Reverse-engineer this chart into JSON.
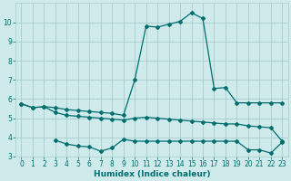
{
  "line1_x": [
    0,
    1,
    2,
    3,
    4,
    5,
    6,
    7,
    8,
    9,
    10,
    11,
    12,
    13,
    14,
    15,
    16,
    17,
    18,
    19,
    20,
    21,
    22,
    23
  ],
  "line1_y": [
    5.75,
    5.55,
    5.6,
    5.55,
    5.45,
    5.4,
    5.35,
    5.3,
    5.25,
    5.15,
    7.0,
    9.8,
    9.75,
    9.9,
    10.05,
    10.5,
    10.2,
    6.55,
    6.6,
    5.8,
    5.8,
    5.8,
    5.8,
    5.8
  ],
  "line2_x": [
    0,
    1,
    2,
    3,
    4,
    5,
    6,
    7,
    8,
    9,
    10,
    11,
    12,
    13,
    14,
    15,
    16,
    17,
    18,
    19,
    20,
    21,
    22,
    23
  ],
  "line2_y": [
    5.75,
    5.55,
    5.6,
    5.3,
    5.15,
    5.1,
    5.05,
    5.0,
    4.95,
    4.9,
    5.0,
    5.05,
    5.0,
    4.95,
    4.9,
    4.85,
    4.8,
    4.75,
    4.7,
    4.7,
    4.6,
    4.55,
    4.5,
    3.8
  ],
  "line3_x": [
    3,
    4,
    5,
    6,
    7,
    8,
    9,
    10,
    11,
    12,
    13,
    14,
    15,
    16,
    17,
    18,
    19,
    20,
    21,
    22,
    23
  ],
  "line3_y": [
    3.85,
    3.65,
    3.55,
    3.5,
    3.28,
    3.45,
    3.9,
    3.8,
    3.8,
    3.8,
    3.8,
    3.8,
    3.8,
    3.8,
    3.8,
    3.8,
    3.8,
    3.35,
    3.35,
    3.18,
    3.75
  ],
  "line_color": "#006e6e",
  "bg_color": "#ceeaea",
  "grid_color": "#a8cccc",
  "xlabel": "Humidex (Indice chaleur)",
  "ylim": [
    3,
    11
  ],
  "xlim": [
    -0.5,
    23.5
  ],
  "yticks": [
    3,
    4,
    5,
    6,
    7,
    8,
    9,
    10
  ],
  "xticks": [
    0,
    1,
    2,
    3,
    4,
    5,
    6,
    7,
    8,
    9,
    10,
    11,
    12,
    13,
    14,
    15,
    16,
    17,
    18,
    19,
    20,
    21,
    22,
    23
  ],
  "marker": "D",
  "marker_size": 2.0,
  "linewidth": 0.9,
  "tick_fontsize": 5.5,
  "xlabel_fontsize": 6.5
}
